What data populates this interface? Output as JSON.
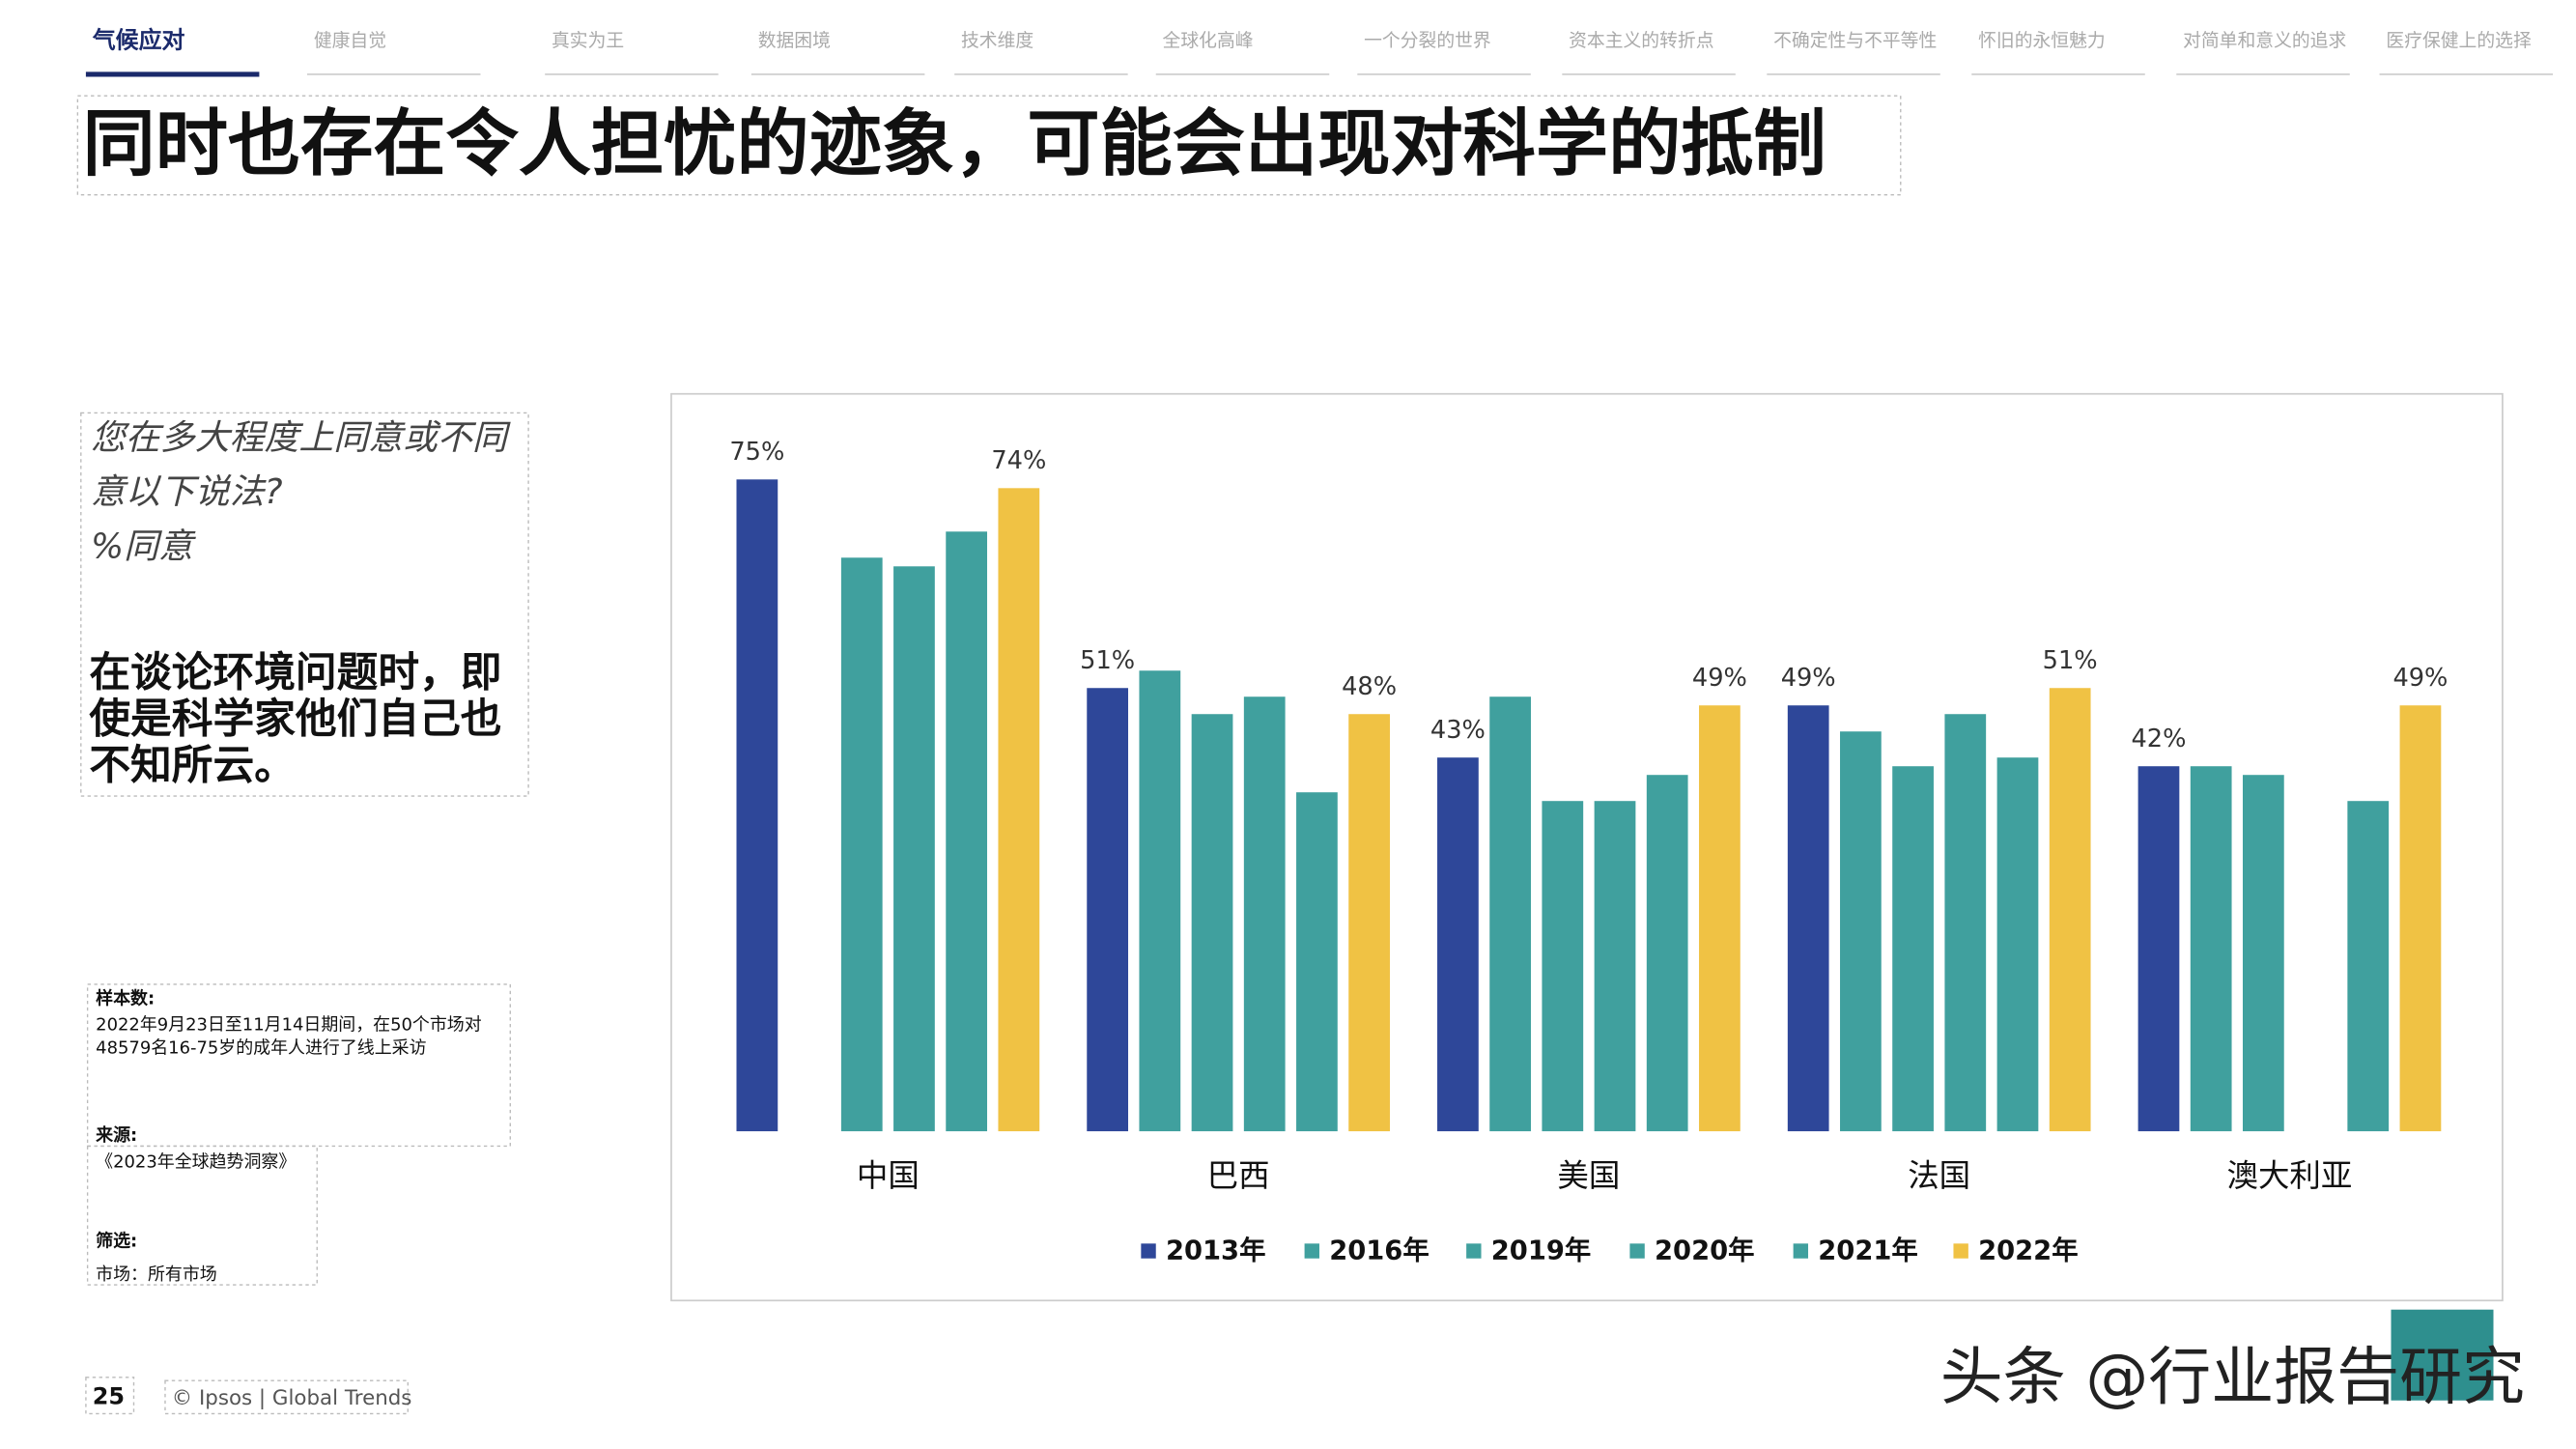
{
  "nav": {
    "tabs": [
      "气候应对",
      "健康自觉",
      "真实为王",
      "数据困境",
      "技术维度",
      "全球化高峰",
      "一个分裂的世界",
      "资本主义的转折点",
      "不确定性与不平等性",
      "怀旧的永恒魅力",
      "对简单和意义的追求",
      "医疗保健上的选择"
    ]
  },
  "header": {
    "title": "同时也存在令人担忧的迹象，可能会出现对科学的抵制"
  },
  "question": {
    "lines": [
      "您在多大程度上同意或不同",
      "意以下说法?",
      "%同意"
    ]
  },
  "statement": {
    "lines": [
      "在谈论环境问题时，即",
      "使是科学家他们自己也",
      "不知所云。"
    ]
  },
  "notes": {
    "sample_label": "样本数:",
    "sample_lines": [
      "2022年9月23日至11月14日期间，在50个市场对",
      "48579名16-75岁的成年人进行了线上采访"
    ],
    "source_label": "来源:",
    "source": "《2023年全球趋势洞察》",
    "filter_label": "筛选:",
    "filter": "市场：所有市场"
  },
  "footer": {
    "page": "25",
    "credit": "© Ipsos | Global Trends",
    "watermark": "头条 @行业报告研究"
  },
  "chart_data": {
    "type": "bar",
    "categories": [
      "中国",
      "巴西",
      "美国",
      "法国",
      "澳大利亚"
    ],
    "ylim": [
      0,
      80
    ],
    "series": [
      {
        "name": "2013年",
        "color": "#2e4799",
        "values": [
          75,
          51,
          43,
          49,
          42
        ],
        "value_labels": [
          "75%",
          "51%",
          "43%",
          "49%",
          "42%"
        ]
      },
      {
        "name": "2016年",
        "color": "#40a09e",
        "values": [
          null,
          53,
          50,
          46,
          42
        ]
      },
      {
        "name": "2019年",
        "color": "#40a09e",
        "values": [
          66,
          48,
          38,
          42,
          41
        ]
      },
      {
        "name": "2020年",
        "color": "#40a09e",
        "values": [
          65,
          50,
          38,
          48,
          null
        ]
      },
      {
        "name": "2021年",
        "color": "#40a09e",
        "values": [
          69,
          39,
          41,
          43,
          38
        ]
      },
      {
        "name": "2022年",
        "color": "#f0c244",
        "values": [
          74,
          48,
          49,
          51,
          49
        ],
        "value_labels": [
          "74%",
          "48%",
          "49%",
          "51%",
          "49%"
        ]
      }
    ]
  }
}
